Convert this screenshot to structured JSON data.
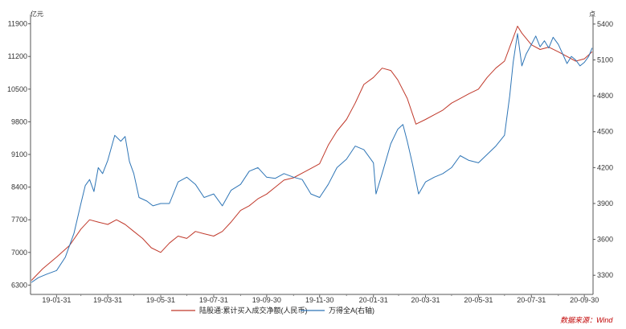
{
  "chart_data": {
    "type": "line",
    "title": "",
    "left_unit": "亿元",
    "right_unit": "点",
    "x_ticks": [
      "19-01-31",
      "19-03-31",
      "19-05-31",
      "19-07-31",
      "19-09-30",
      "19-11-30",
      "20-01-31",
      "20-03-31",
      "20-05-31",
      "20-07-31",
      "20-09-30"
    ],
    "left_axis": {
      "ylim": [
        6100,
        12100
      ],
      "ticks": [
        6300,
        7000,
        7700,
        8400,
        9100,
        9800,
        10500,
        11200,
        11900
      ]
    },
    "right_axis": {
      "ylim": [
        3140,
        5480
      ],
      "ticks": [
        3300,
        3600,
        3900,
        4200,
        4500,
        4800,
        5100,
        5400
      ]
    },
    "x_range": [
      "2019-01-01",
      "2020-10-10"
    ],
    "series": [
      {
        "name": "陆股通:累计买入成交净额(人民币)",
        "axis": "left",
        "color": "#c0392b",
        "points": [
          [
            "2019-01-02",
            6400
          ],
          [
            "2019-01-15",
            6650
          ],
          [
            "2019-01-31",
            6900
          ],
          [
            "2019-02-15",
            7150
          ],
          [
            "2019-02-28",
            7500
          ],
          [
            "2019-03-10",
            7700
          ],
          [
            "2019-03-20",
            7650
          ],
          [
            "2019-03-31",
            7600
          ],
          [
            "2019-04-10",
            7700
          ],
          [
            "2019-04-20",
            7600
          ],
          [
            "2019-04-30",
            7450
          ],
          [
            "2019-05-10",
            7300
          ],
          [
            "2019-05-20",
            7100
          ],
          [
            "2019-05-31",
            7000
          ],
          [
            "2019-06-10",
            7200
          ],
          [
            "2019-06-20",
            7350
          ],
          [
            "2019-06-30",
            7300
          ],
          [
            "2019-07-10",
            7450
          ],
          [
            "2019-07-20",
            7400
          ],
          [
            "2019-07-31",
            7350
          ],
          [
            "2019-08-10",
            7450
          ],
          [
            "2019-08-20",
            7650
          ],
          [
            "2019-08-31",
            7900
          ],
          [
            "2019-09-10",
            8000
          ],
          [
            "2019-09-20",
            8150
          ],
          [
            "2019-09-30",
            8250
          ],
          [
            "2019-10-10",
            8400
          ],
          [
            "2019-10-20",
            8550
          ],
          [
            "2019-10-31",
            8600
          ],
          [
            "2019-11-10",
            8700
          ],
          [
            "2019-11-20",
            8800
          ],
          [
            "2019-11-30",
            8900
          ],
          [
            "2019-12-10",
            9300
          ],
          [
            "2019-12-20",
            9600
          ],
          [
            "2019-12-31",
            9850
          ],
          [
            "2020-01-10",
            10200
          ],
          [
            "2020-01-20",
            10600
          ],
          [
            "2020-01-31",
            10750
          ],
          [
            "2020-02-10",
            10950
          ],
          [
            "2020-02-20",
            10900
          ],
          [
            "2020-02-28",
            10700
          ],
          [
            "2020-03-10",
            10300
          ],
          [
            "2020-03-20",
            9750
          ],
          [
            "2020-03-31",
            9850
          ],
          [
            "2020-04-10",
            9950
          ],
          [
            "2020-04-20",
            10050
          ],
          [
            "2020-04-30",
            10200
          ],
          [
            "2020-05-10",
            10300
          ],
          [
            "2020-05-20",
            10400
          ],
          [
            "2020-05-31",
            10500
          ],
          [
            "2020-06-10",
            10750
          ],
          [
            "2020-06-20",
            10950
          ],
          [
            "2020-06-30",
            11100
          ],
          [
            "2020-07-10",
            11600
          ],
          [
            "2020-07-15",
            11850
          ],
          [
            "2020-07-20",
            11700
          ],
          [
            "2020-07-31",
            11450
          ],
          [
            "2020-08-10",
            11350
          ],
          [
            "2020-08-20",
            11400
          ],
          [
            "2020-08-31",
            11300
          ],
          [
            "2020-09-10",
            11200
          ],
          [
            "2020-09-20",
            11100
          ],
          [
            "2020-09-30",
            11150
          ],
          [
            "2020-10-09",
            11300
          ]
        ]
      },
      {
        "name": "万得全A(右轴)",
        "axis": "right",
        "color": "#2e75b6",
        "points": [
          [
            "2019-01-02",
            3240
          ],
          [
            "2019-01-10",
            3280
          ],
          [
            "2019-01-20",
            3310
          ],
          [
            "2019-01-31",
            3340
          ],
          [
            "2019-02-10",
            3450
          ],
          [
            "2019-02-20",
            3650
          ],
          [
            "2019-02-28",
            3900
          ],
          [
            "2019-03-05",
            4050
          ],
          [
            "2019-03-10",
            4100
          ],
          [
            "2019-03-15",
            4000
          ],
          [
            "2019-03-20",
            4200
          ],
          [
            "2019-03-25",
            4150
          ],
          [
            "2019-03-31",
            4260
          ],
          [
            "2019-04-08",
            4470
          ],
          [
            "2019-04-15",
            4420
          ],
          [
            "2019-04-20",
            4460
          ],
          [
            "2019-04-25",
            4250
          ],
          [
            "2019-04-30",
            4150
          ],
          [
            "2019-05-06",
            3950
          ],
          [
            "2019-05-15",
            3920
          ],
          [
            "2019-05-22",
            3880
          ],
          [
            "2019-05-31",
            3900
          ],
          [
            "2019-06-10",
            3900
          ],
          [
            "2019-06-20",
            4080
          ],
          [
            "2019-06-30",
            4120
          ],
          [
            "2019-07-10",
            4060
          ],
          [
            "2019-07-20",
            3950
          ],
          [
            "2019-07-31",
            3980
          ],
          [
            "2019-08-10",
            3880
          ],
          [
            "2019-08-20",
            4010
          ],
          [
            "2019-08-31",
            4060
          ],
          [
            "2019-09-10",
            4170
          ],
          [
            "2019-09-20",
            4200
          ],
          [
            "2019-09-30",
            4120
          ],
          [
            "2019-10-10",
            4110
          ],
          [
            "2019-10-20",
            4150
          ],
          [
            "2019-10-31",
            4120
          ],
          [
            "2019-11-10",
            4100
          ],
          [
            "2019-11-20",
            3980
          ],
          [
            "2019-11-30",
            3950
          ],
          [
            "2019-12-10",
            4060
          ],
          [
            "2019-12-20",
            4200
          ],
          [
            "2019-12-31",
            4270
          ],
          [
            "2020-01-10",
            4380
          ],
          [
            "2020-01-20",
            4350
          ],
          [
            "2020-01-31",
            4240
          ],
          [
            "2020-02-03",
            3980
          ],
          [
            "2020-02-10",
            4150
          ],
          [
            "2020-02-20",
            4400
          ],
          [
            "2020-02-28",
            4520
          ],
          [
            "2020-03-05",
            4560
          ],
          [
            "2020-03-10",
            4420
          ],
          [
            "2020-03-16",
            4230
          ],
          [
            "2020-03-23",
            3980
          ],
          [
            "2020-03-31",
            4080
          ],
          [
            "2020-04-10",
            4120
          ],
          [
            "2020-04-20",
            4150
          ],
          [
            "2020-04-30",
            4200
          ],
          [
            "2020-05-10",
            4300
          ],
          [
            "2020-05-20",
            4260
          ],
          [
            "2020-05-31",
            4240
          ],
          [
            "2020-06-10",
            4310
          ],
          [
            "2020-06-20",
            4380
          ],
          [
            "2020-06-30",
            4470
          ],
          [
            "2020-07-06",
            4800
          ],
          [
            "2020-07-10",
            5080
          ],
          [
            "2020-07-15",
            5320
          ],
          [
            "2020-07-20",
            5050
          ],
          [
            "2020-07-25",
            5150
          ],
          [
            "2020-07-31",
            5230
          ],
          [
            "2020-08-05",
            5300
          ],
          [
            "2020-08-10",
            5210
          ],
          [
            "2020-08-15",
            5260
          ],
          [
            "2020-08-20",
            5200
          ],
          [
            "2020-08-25",
            5290
          ],
          [
            "2020-08-31",
            5230
          ],
          [
            "2020-09-05",
            5150
          ],
          [
            "2020-09-10",
            5070
          ],
          [
            "2020-09-15",
            5130
          ],
          [
            "2020-09-20",
            5100
          ],
          [
            "2020-09-25",
            5050
          ],
          [
            "2020-09-30",
            5080
          ],
          [
            "2020-10-05",
            5130
          ],
          [
            "2020-10-09",
            5200
          ]
        ]
      }
    ],
    "legend_position": "bottom",
    "source": "数据来源：Wind"
  }
}
